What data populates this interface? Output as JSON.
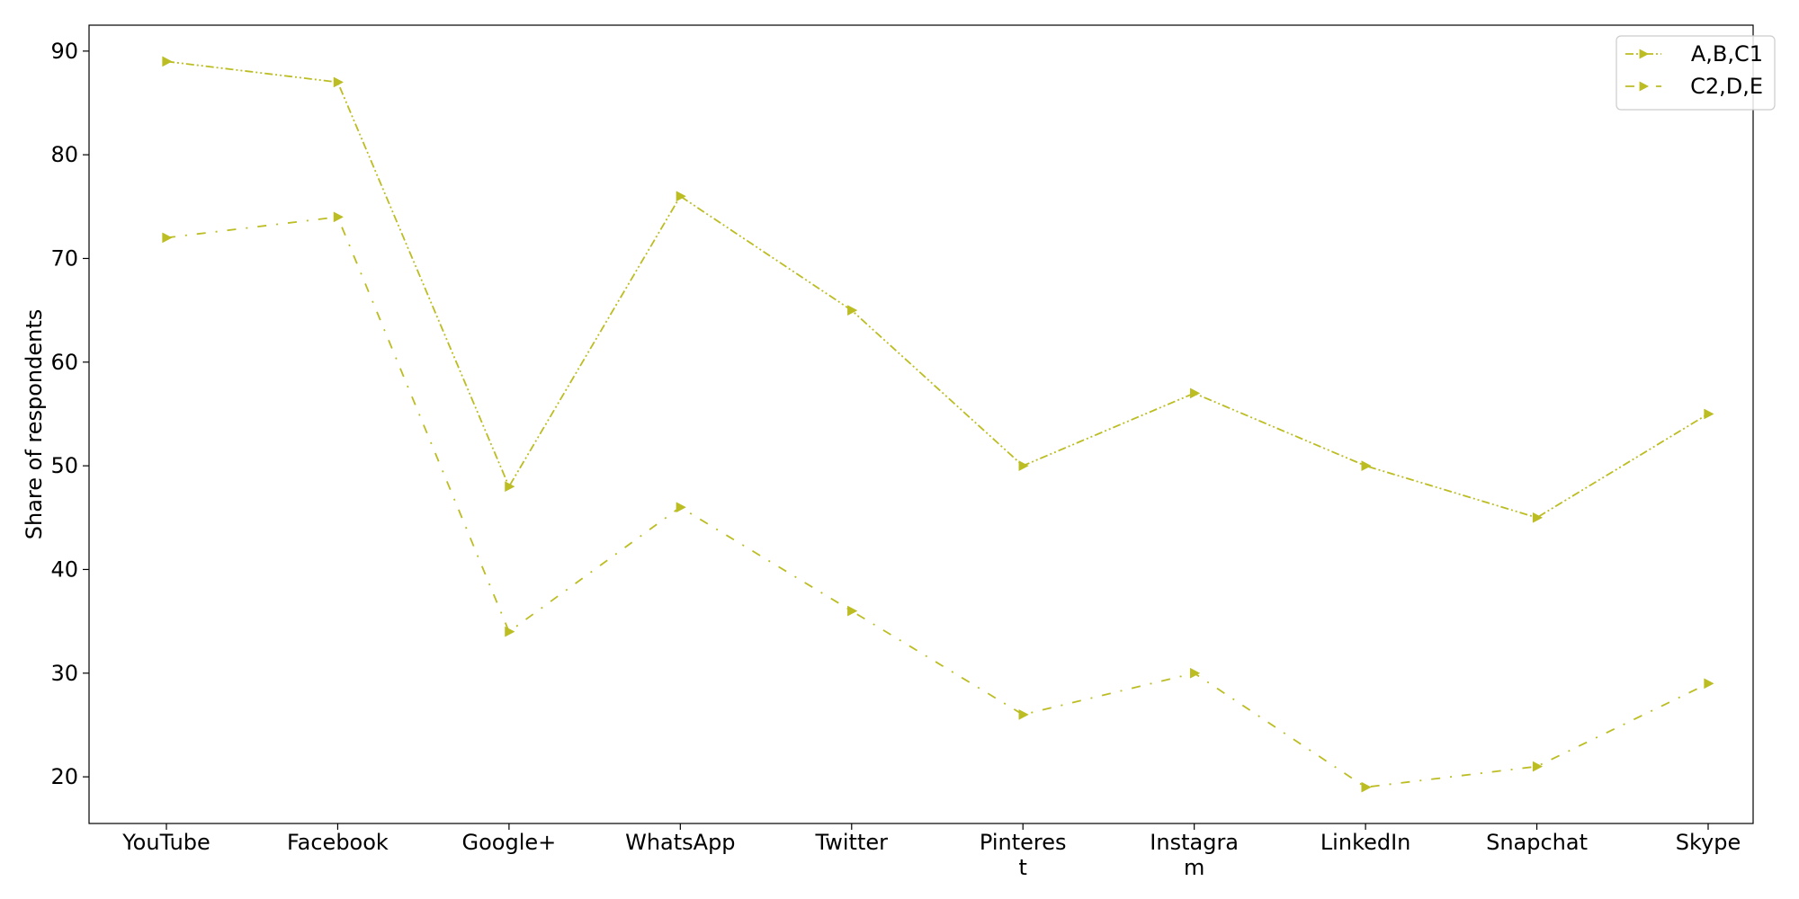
{
  "chart_data": {
    "type": "line",
    "title": "",
    "xlabel": "",
    "ylabel": "Share of respondents",
    "categories": [
      "YouTube",
      "Facebook",
      "Google+",
      "WhatsApp",
      "Twitter",
      "Pinteres\nt",
      "Instagra\nm",
      "LinkedIn",
      "Snapchat",
      "Skype"
    ],
    "series": [
      {
        "name": "A,B,C1",
        "values": [
          89,
          87,
          48,
          76,
          65,
          50,
          57,
          50,
          45,
          55
        ],
        "color": "#bcbd22",
        "line_style": "dash-dot-dot",
        "marker": "triangle-right"
      },
      {
        "name": "C2,D,E",
        "values": [
          72,
          74,
          34,
          46,
          36,
          26,
          30,
          19,
          21,
          29
        ],
        "color": "#bcbd22",
        "line_style": "dash-dot-sparse",
        "marker": "triangle-right"
      }
    ],
    "ylim": [
      15.5,
      92.5
    ],
    "yticks": [
      20,
      30,
      40,
      50,
      60,
      70,
      80,
      90
    ],
    "grid": false,
    "legend_position": "top-right"
  }
}
